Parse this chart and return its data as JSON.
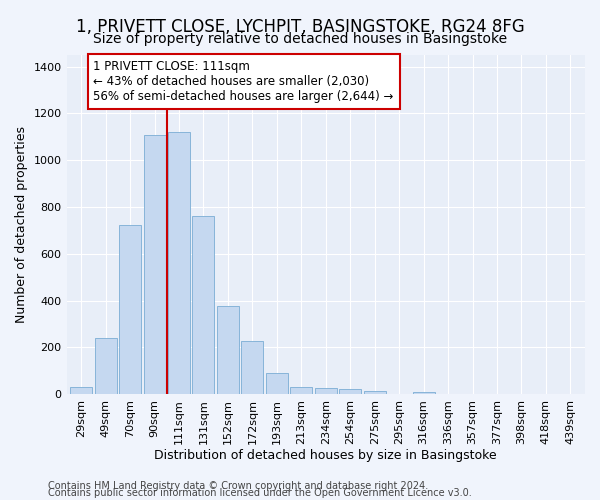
{
  "title": "1, PRIVETT CLOSE, LYCHPIT, BASINGSTOKE, RG24 8FG",
  "subtitle": "Size of property relative to detached houses in Basingstoke",
  "xlabel": "Distribution of detached houses by size in Basingstoke",
  "ylabel": "Number of detached properties",
  "categories": [
    "29sqm",
    "49sqm",
    "70sqm",
    "90sqm",
    "111sqm",
    "131sqm",
    "152sqm",
    "172sqm",
    "193sqm",
    "213sqm",
    "234sqm",
    "254sqm",
    "275sqm",
    "295sqm",
    "316sqm",
    "336sqm",
    "357sqm",
    "377sqm",
    "398sqm",
    "418sqm",
    "439sqm"
  ],
  "values": [
    30,
    238,
    723,
    1108,
    1120,
    760,
    378,
    228,
    90,
    32,
    27,
    20,
    15,
    0,
    10,
    0,
    0,
    0,
    0,
    0,
    0
  ],
  "bar_color": "#c5d8f0",
  "bar_edge_color": "#7aadd4",
  "vline_color": "#cc0000",
  "annotation_text": "1 PRIVETT CLOSE: 111sqm\n← 43% of detached houses are smaller (2,030)\n56% of semi-detached houses are larger (2,644) →",
  "annotation_box_color": "#ffffff",
  "annotation_box_edge_color": "#cc0000",
  "ylim": [
    0,
    1450
  ],
  "yticks": [
    0,
    200,
    400,
    600,
    800,
    1000,
    1200,
    1400
  ],
  "footer1": "Contains HM Land Registry data © Crown copyright and database right 2024.",
  "footer2": "Contains public sector information licensed under the Open Government Licence v3.0.",
  "bg_color": "#f0f4fc",
  "plot_bg_color": "#e8eef8",
  "title_fontsize": 12,
  "subtitle_fontsize": 10,
  "tick_fontsize": 8,
  "label_fontsize": 9,
  "footer_fontsize": 7
}
